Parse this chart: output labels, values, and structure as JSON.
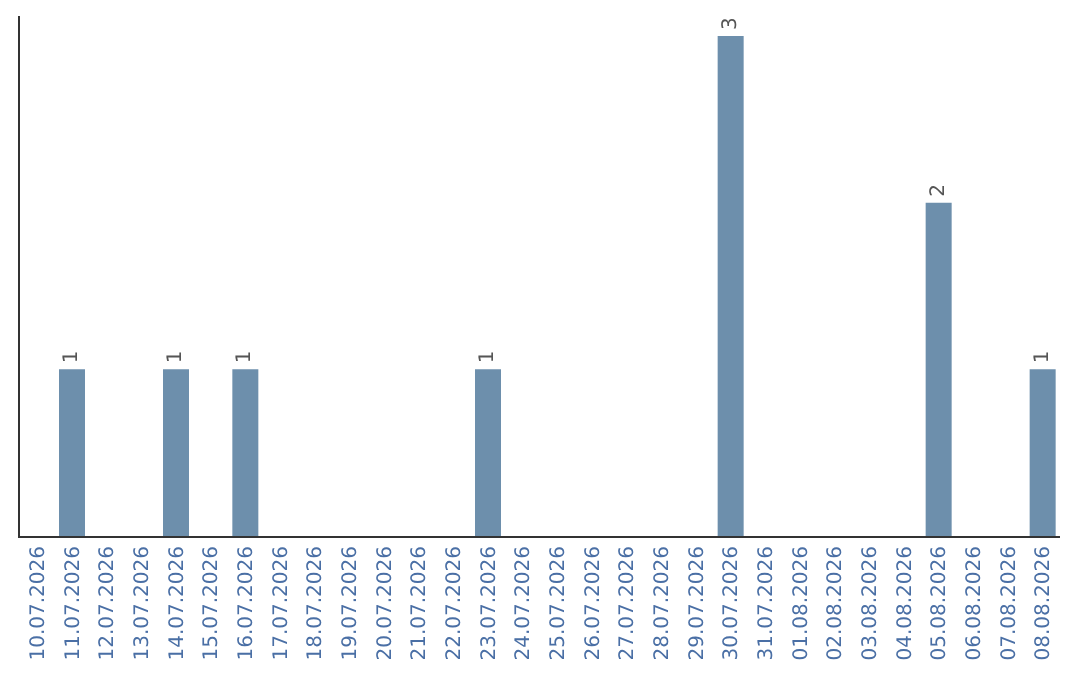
{
  "chart_data": {
    "type": "bar",
    "categories": [
      "10.07.2026",
      "11.07.2026",
      "12.07.2026",
      "13.07.2026",
      "14.07.2026",
      "15.07.2026",
      "16.07.2026",
      "17.07.2026",
      "18.07.2026",
      "19.07.2026",
      "20.07.2026",
      "21.07.2026",
      "22.07.2026",
      "23.07.2026",
      "24.07.2026",
      "25.07.2026",
      "26.07.2026",
      "27.07.2026",
      "28.07.2026",
      "29.07.2026",
      "30.07.2026",
      "31.07.2026",
      "01.08.2026",
      "02.08.2026",
      "03.08.2026",
      "04.08.2026",
      "05.08.2026",
      "06.08.2026",
      "07.08.2026",
      "08.08.2026"
    ],
    "values": [
      0,
      1,
      0,
      0,
      1,
      0,
      1,
      0,
      0,
      0,
      0,
      0,
      0,
      1,
      0,
      0,
      0,
      0,
      0,
      0,
      3,
      0,
      0,
      0,
      0,
      0,
      2,
      0,
      0,
      1
    ],
    "value_labels": [
      null,
      "1",
      null,
      null,
      "1",
      null,
      "1",
      null,
      null,
      null,
      null,
      null,
      null,
      "1",
      null,
      null,
      null,
      null,
      null,
      null,
      "3",
      null,
      null,
      null,
      null,
      null,
      "2",
      null,
      null,
      "1"
    ],
    "color": "#6d8fac",
    "ylim": [
      0,
      3.12
    ],
    "tick_labels": "x"
  }
}
